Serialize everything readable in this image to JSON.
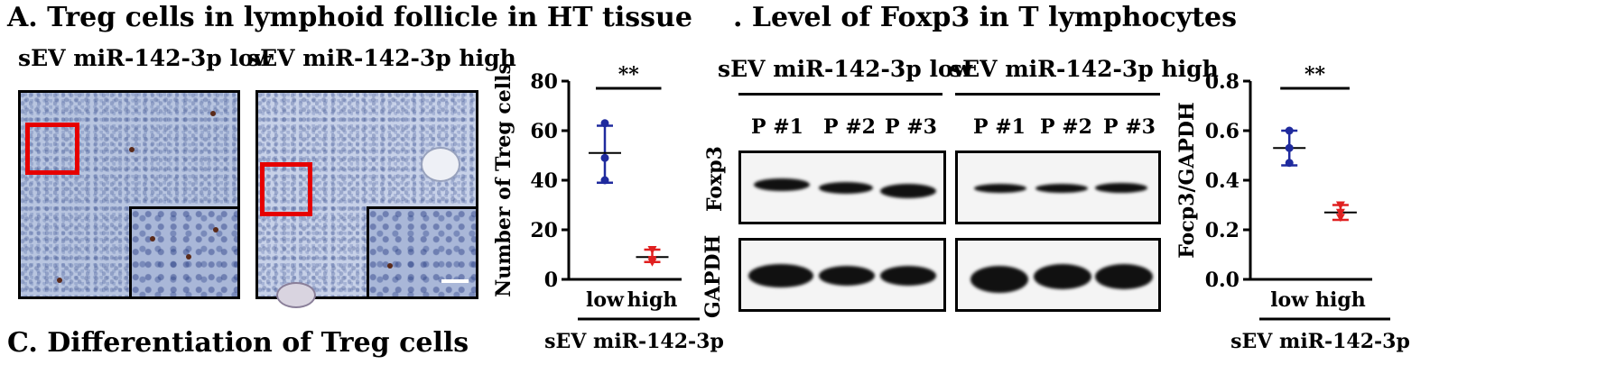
{
  "panel_a": {
    "title": "A. Treg cells in lymphoid follicle in HT tissue",
    "group_low": "sEV miR-142-3p low",
    "group_high": "sEV miR-142-3p high"
  },
  "panel_b": {
    "title": ". Level of Foxp3 in T lymphocytes",
    "group_low": "sEV miR-142-3p low",
    "group_high": "sEV miR-142-3p high",
    "lanes_low": [
      "P #1",
      "P #2",
      "P #3"
    ],
    "lanes_high": [
      "P #1",
      "P #2",
      "P #3"
    ],
    "row_foxp3": "Foxp3",
    "row_gapdh": "GAPDH"
  },
  "panel_c": {
    "title": "C. Differentiation of Treg cells"
  },
  "chart_data": [
    {
      "type": "scatter",
      "ylabel": "Number of Treg cells",
      "xlabel": "sEV miR-142-3p",
      "categories": [
        "low",
        "high"
      ],
      "ylim": [
        0,
        80
      ],
      "yticks": [
        0,
        20,
        40,
        60,
        80
      ],
      "significance": "**",
      "series": [
        {
          "category": "low",
          "color": "#1f2a9e",
          "points": [
            63,
            49,
            40
          ],
          "mean": 51,
          "sd_upper": 62,
          "sd_lower": 39
        },
        {
          "category": "high",
          "color": "#e02020",
          "points": [
            12,
            8,
            7
          ],
          "mean": 9,
          "sd_upper": 12,
          "sd_lower": 7
        }
      ]
    },
    {
      "type": "scatter",
      "ylabel": "Focp3/GAPDH",
      "xlabel": "sEV miR-142-3p",
      "categories": [
        "low",
        "high"
      ],
      "ylim": [
        0,
        0.8
      ],
      "yticks": [
        "0.0",
        "0.2",
        "0.4",
        "0.6",
        "0.8"
      ],
      "significance": "**",
      "series": [
        {
          "category": "low",
          "color": "#1f2a9e",
          "points": [
            0.6,
            0.53,
            0.47
          ],
          "mean": 0.53,
          "sd_upper": 0.6,
          "sd_lower": 0.46
        },
        {
          "category": "high",
          "color": "#e02020",
          "points": [
            0.3,
            0.27,
            0.25
          ],
          "mean": 0.27,
          "sd_upper": 0.3,
          "sd_lower": 0.24
        }
      ]
    }
  ]
}
